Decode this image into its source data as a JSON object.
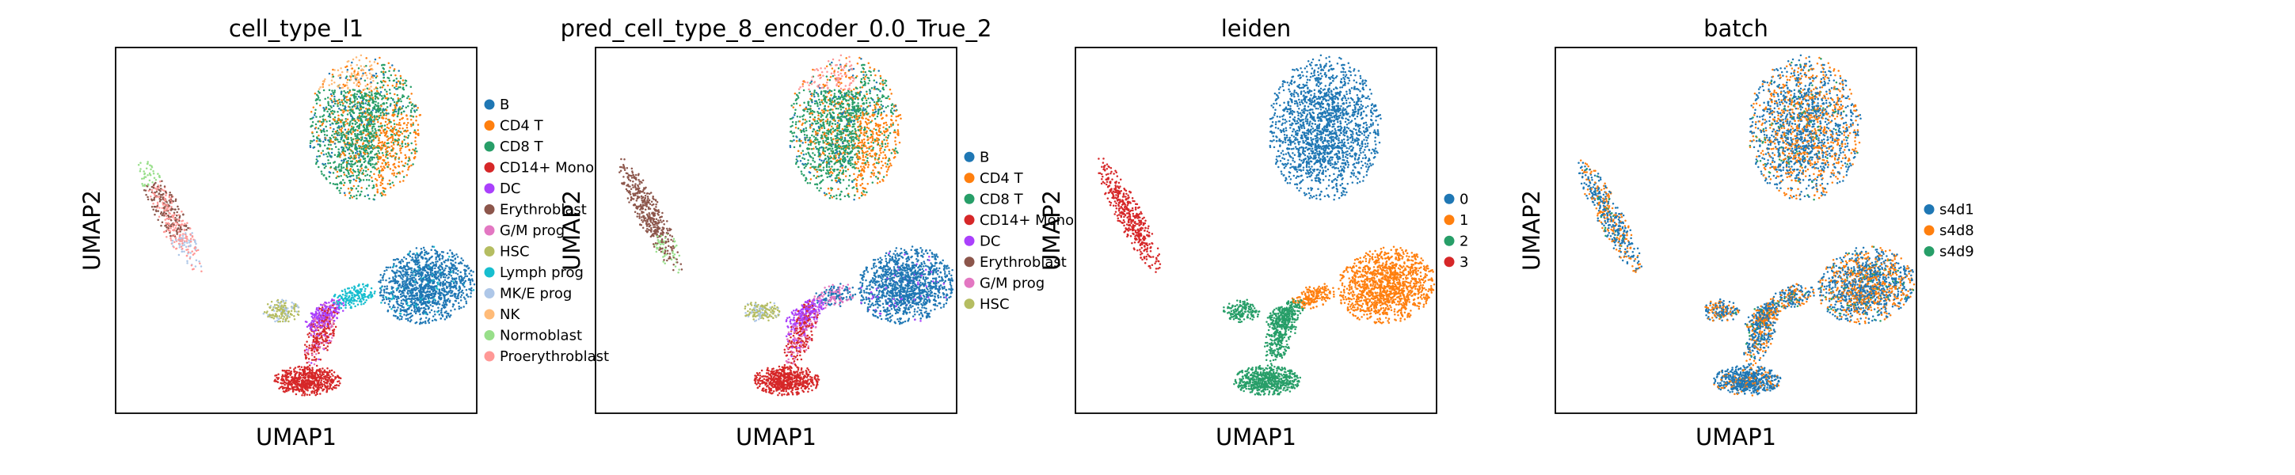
{
  "chart_data": [
    {
      "type": "scatter",
      "title": "cell_type_l1",
      "xlabel": "UMAP1",
      "ylabel": "UMAP2",
      "grid": false,
      "legend": "right-outside",
      "legend_entries": [
        {
          "label": "B",
          "color": "#1f77b4"
        },
        {
          "label": "CD4 T",
          "color": "#ff7f0e"
        },
        {
          "label": "CD8 T",
          "color": "#279e68"
        },
        {
          "label": "CD14+ Mono",
          "color": "#d62728"
        },
        {
          "label": "DC",
          "color": "#aa40fc"
        },
        {
          "label": "Erythroblast",
          "color": "#8c564b"
        },
        {
          "label": "G/M prog",
          "color": "#e377c2"
        },
        {
          "label": "HSC",
          "color": "#b5bd61"
        },
        {
          "label": "Lymph prog",
          "color": "#17becf"
        },
        {
          "label": "MK/E prog",
          "color": "#aec7e8"
        },
        {
          "label": "NK",
          "color": "#ffbb78"
        },
        {
          "label": "Normoblast",
          "color": "#98df8a"
        },
        {
          "label": "Proerythroblast",
          "color": "#ff9896"
        }
      ]
    },
    {
      "type": "scatter",
      "title": "pred_cell_type_8_encoder_0.0_True_2",
      "xlabel": "UMAP1",
      "ylabel": "UMAP2",
      "grid": false,
      "legend": "right-outside",
      "legend_entries": [
        {
          "label": "B",
          "color": "#1f77b4"
        },
        {
          "label": "CD4 T",
          "color": "#ff7f0e"
        },
        {
          "label": "CD8 T",
          "color": "#279e68"
        },
        {
          "label": "CD14+ Mono",
          "color": "#d62728"
        },
        {
          "label": "DC",
          "color": "#aa40fc"
        },
        {
          "label": "Erythroblast",
          "color": "#8c564b"
        },
        {
          "label": "G/M prog",
          "color": "#e377c2"
        },
        {
          "label": "HSC",
          "color": "#b5bd61"
        }
      ]
    },
    {
      "type": "scatter",
      "title": "leiden",
      "xlabel": "UMAP1",
      "ylabel": "UMAP2",
      "grid": false,
      "legend": "right-outside",
      "legend_entries": [
        {
          "label": "0",
          "color": "#1f77b4"
        },
        {
          "label": "1",
          "color": "#ff7f0e"
        },
        {
          "label": "2",
          "color": "#279e68"
        },
        {
          "label": "3",
          "color": "#d62728"
        }
      ]
    },
    {
      "type": "scatter",
      "title": "batch",
      "xlabel": "UMAP1",
      "ylabel": "UMAP2",
      "grid": false,
      "legend": "right-outside",
      "legend_entries": [
        {
          "label": "s4d1",
          "color": "#1f77b4"
        },
        {
          "label": "s4d8",
          "color": "#ff7f0e"
        },
        {
          "label": "s4d9",
          "color": "#279e68"
        }
      ]
    }
  ]
}
